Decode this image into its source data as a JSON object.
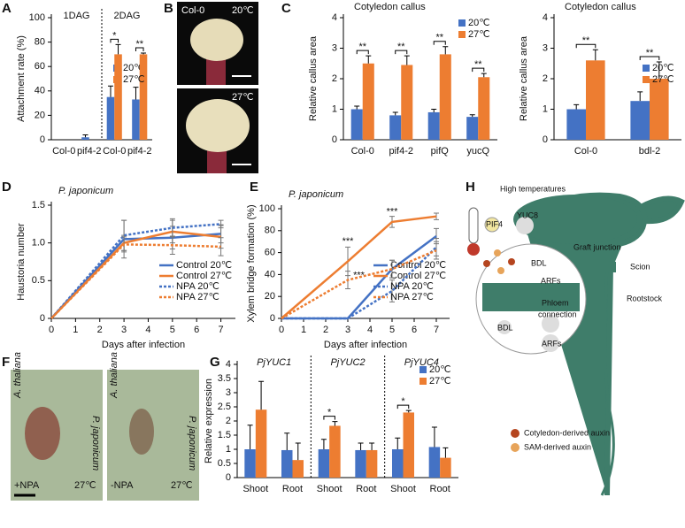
{
  "panels": [
    "A",
    "B",
    "C",
    "D",
    "E",
    "F",
    "G",
    "H"
  ],
  "photos": {
    "b_top": [
      "Col-0",
      "20℃"
    ],
    "b_bottom": "27℃",
    "f_left": [
      "A. thaliana",
      "P. japonicum",
      "+NPA",
      "27℃"
    ],
    "f_right": [
      "A. thaliana",
      "P. japonicum",
      "-NPA",
      "27℃"
    ]
  },
  "diagram": {
    "heat": "High temperatures",
    "pif4": "PIF4",
    "yuc8": "YUC8",
    "graft": "Graft junction",
    "scion": "Scion",
    "rootstock": "Rootstock",
    "bdl_top": "BDL",
    "arfs_top": "ARFs",
    "phloem": "Phloem",
    "connection": "connection",
    "bdl_bottom": "BDL",
    "arfs_bottom": "ARFs",
    "legend": [
      "Cotyledon-derived auxin",
      "SAM-derived auxin"
    ]
  },
  "chart_data": [
    {
      "type": "bar",
      "ylabel": "Attachment rate (%)",
      "groups": [
        "1DAG",
        "2DAG"
      ],
      "categories": [
        "Col-0",
        "pif4-2",
        "Col-0",
        "pif4-2"
      ],
      "series": [
        {
          "name": "20℃",
          "color": "#4472c4",
          "values": [
            0,
            2,
            35,
            33
          ],
          "errors": [
            0,
            2,
            9,
            10
          ]
        },
        {
          "name": "27℃",
          "color": "#ed7d31",
          "values": [
            0,
            0,
            70,
            70
          ],
          "errors": [
            0,
            0,
            8,
            1
          ]
        }
      ],
      "significance": [
        null,
        null,
        "*",
        "**"
      ],
      "ylim": [
        0,
        100
      ],
      "yticks": [
        0,
        20,
        40,
        60,
        80,
        100
      ],
      "legend": "right"
    },
    {
      "type": "bar",
      "title": "Cotyledon callus",
      "ylabel": "Relative callus area",
      "categories": [
        "Col-0",
        "pif4-2",
        "pifQ",
        "yucQ"
      ],
      "series": [
        {
          "name": "20℃",
          "color": "#4472c4",
          "values": [
            1.0,
            0.8,
            0.9,
            0.75
          ],
          "errors": [
            0.1,
            0.1,
            0.1,
            0.07
          ]
        },
        {
          "name": "27℃",
          "color": "#ed7d31",
          "values": [
            2.5,
            2.45,
            2.8,
            2.05
          ],
          "errors": [
            0.25,
            0.3,
            0.25,
            0.12
          ]
        }
      ],
      "significance": [
        "**",
        "**",
        "**",
        "**"
      ],
      "ylim": [
        0,
        4
      ],
      "yticks": [
        0,
        1,
        2,
        3,
        4
      ]
    },
    {
      "type": "bar",
      "title": "Cotyledon callus",
      "ylabel": "Relative callus area",
      "categories": [
        "Col-0",
        "bdl-2"
      ],
      "series": [
        {
          "name": "20℃",
          "color": "#4472c4",
          "values": [
            1.0,
            1.27
          ],
          "errors": [
            0.15,
            0.3
          ]
        },
        {
          "name": "27℃",
          "color": "#ed7d31",
          "values": [
            2.6,
            2.0
          ],
          "errors": [
            0.35,
            0.55
          ]
        }
      ],
      "significance": [
        "**",
        "**"
      ],
      "ylim": [
        0,
        4
      ],
      "yticks": [
        0,
        1,
        2,
        3,
        4
      ],
      "legend": "right"
    },
    {
      "type": "line",
      "title": "P. japonicum",
      "ylabel": "Haustoria number",
      "xlabel": "Days after infection",
      "x": [
        0,
        3,
        5,
        7
      ],
      "series": [
        {
          "name": "Control 20℃",
          "color": "#4472c4",
          "style": "solid",
          "values": [
            0,
            1.05,
            1.07,
            1.12
          ],
          "errors": [
            0,
            0.25,
            0.15,
            0.12
          ]
        },
        {
          "name": "Control 27℃",
          "color": "#ed7d31",
          "style": "solid",
          "values": [
            0,
            1.0,
            1.15,
            1.08
          ],
          "errors": [
            0,
            0.1,
            0.15,
            0.15
          ]
        },
        {
          "name": "NPA 20℃",
          "color": "#4472c4",
          "style": "dotted",
          "values": [
            0,
            1.1,
            1.2,
            1.25
          ],
          "errors": [
            0,
            0.2,
            0.12,
            0.05
          ]
        },
        {
          "name": "NPA 27℃",
          "color": "#ed7d31",
          "style": "dotted",
          "values": [
            0,
            0.98,
            0.97,
            0.95
          ],
          "errors": [
            0,
            0.1,
            0.12,
            0.12
          ]
        }
      ],
      "xlim": [
        0,
        7.6
      ],
      "xticks": [
        0,
        1,
        2,
        3,
        4,
        5,
        6,
        7
      ],
      "ylim": [
        0,
        1.5
      ],
      "yticks": [
        0,
        0.5,
        {
          "value": 1,
          "label": "1.0"
        },
        1.5
      ],
      "legend": "lower right"
    },
    {
      "type": "line",
      "title": "P. japonicum",
      "ylabel": "Xylem bridge formation (%)",
      "xlabel": "Days after infection",
      "x": [
        0,
        3,
        5,
        7
      ],
      "series": [
        {
          "name": "Control 20℃",
          "color": "#4472c4",
          "style": "solid",
          "values": [
            0,
            0,
            45,
            75
          ],
          "errors": [
            0,
            0,
            8,
            7
          ]
        },
        {
          "name": "Control 27℃",
          "color": "#ed7d31",
          "style": "solid",
          "values": [
            0,
            52,
            88,
            93
          ],
          "errors": [
            0,
            13,
            5,
            3
          ]
        },
        {
          "name": "NPA 20℃",
          "color": "#4472c4",
          "style": "dotted",
          "values": [
            0,
            0,
            25,
            65
          ],
          "errors": [
            0,
            0,
            10,
            8
          ]
        },
        {
          "name": "NPA 27℃",
          "color": "#ed7d31",
          "style": "dotted",
          "values": [
            0,
            35,
            45,
            62
          ],
          "errors": [
            0,
            8,
            8,
            8
          ]
        }
      ],
      "annotations": [
        {
          "text": "***",
          "x": 3,
          "y": 70
        },
        {
          "text": "***",
          "x": 3.5,
          "y": 39
        },
        {
          "text": "***",
          "x": 5,
          "y": 97
        }
      ],
      "xlim": [
        0,
        7.6
      ],
      "xticks": [
        0,
        1,
        2,
        3,
        4,
        5,
        6,
        7
      ],
      "ylim": [
        0,
        100
      ],
      "yticks": [
        0,
        20,
        40,
        60,
        80,
        100
      ],
      "legend": "lower right"
    },
    {
      "type": "bar",
      "ylabel": "Relative expression",
      "groups": [
        "PjYUC1",
        "PjYUC2",
        "PjYUC4"
      ],
      "categories": [
        "Shoot",
        "Root",
        "Shoot",
        "Root",
        "Shoot",
        "Root"
      ],
      "series": [
        {
          "name": "20℃",
          "color": "#4472c4",
          "values": [
            1,
            0.97,
            1,
            0.97,
            1,
            1.08
          ],
          "errors": [
            0.85,
            0.6,
            0.35,
            0.25,
            0.4,
            0.7
          ]
        },
        {
          "name": "27℃",
          "color": "#ed7d31",
          "values": [
            2.4,
            0.62,
            1.83,
            0.97,
            2.3,
            0.7
          ],
          "errors": [
            1.0,
            0.6,
            0.15,
            0.25,
            0.07,
            0.35
          ]
        }
      ],
      "significance": [
        null,
        null,
        "*",
        null,
        "*",
        null
      ],
      "ylim": [
        0,
        4
      ],
      "yticks": [
        0,
        0.5,
        1,
        1.5,
        2,
        2.5,
        3,
        3.5,
        4
      ],
      "legend": "upper right"
    }
  ]
}
